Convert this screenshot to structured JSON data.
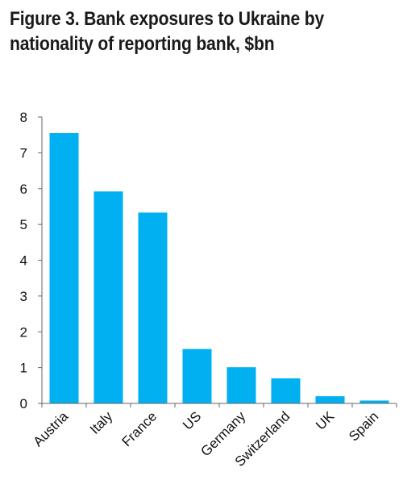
{
  "title_line_1": "Figure 3. Bank exposures to Ukraine by",
  "title_line_2": "nationality of reporting bank, $bn",
  "chart_data": {
    "type": "bar",
    "title": "Figure 3. Bank exposures to Ukraine by nationality of reporting bank, $bn",
    "categories": [
      "Austria",
      "Italy",
      "France",
      "US",
      "Germany",
      "Switzerland",
      "UK",
      "Spain"
    ],
    "values": [
      7.55,
      5.92,
      5.33,
      1.52,
      1.01,
      0.7,
      0.2,
      0.08
    ],
    "ylim": [
      0,
      8
    ],
    "yticks": [
      0,
      1,
      2,
      3,
      4,
      5,
      6,
      7,
      8
    ],
    "bar_color": "#00b0f0",
    "grid": false,
    "legend": "none"
  }
}
